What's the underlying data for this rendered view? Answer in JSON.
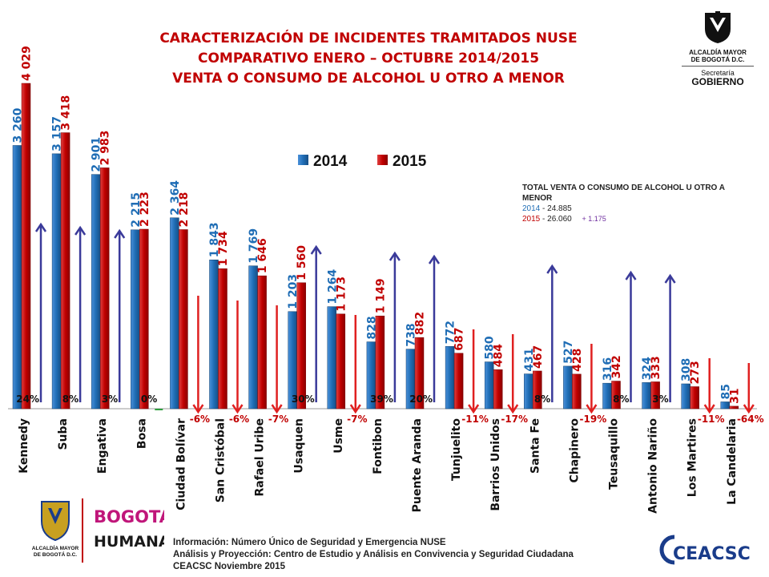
{
  "header": {
    "title_line1": "CARACTERIZACIÓN DE INCIDENTES TRAMITADOS NUSE",
    "title_line2": "COMPARATIVO ENERO – OCTUBRE 2014/2015",
    "title_line3": "VENTA O CONSUMO DE ALCOHOL U OTRO A MENOR"
  },
  "logo_top": {
    "line1": "ALCALDÍA MAYOR",
    "line2": "DE BOGOTÁ D.C.",
    "line3": "Secretaría",
    "line4": "GOBIERNO"
  },
  "logo_bottom_left": {
    "line1": "ALCALDÍA MAYOR",
    "line2": "DE BOGOTÁ D.C."
  },
  "humana_logo": {
    "line1": "BOGOTÁ",
    "line2": "HUMANA"
  },
  "ceacsc_logo": {
    "text": "CEACSC"
  },
  "totals": {
    "heading": "TOTAL VENTA O CONSUMO DE ALCOHOL U OTRO A MENOR",
    "row_2014_year": "2014",
    "row_2014_value": "- 24.885",
    "row_2015_year": "2015",
    "row_2015_value": "- 26.060",
    "difference": "+ 1.175"
  },
  "footer": {
    "line1": "Información: Número Único de Seguridad y Emergencia NUSE",
    "line2": "Análisis y Proyección: Centro de Estudio y Análisis en Convivencia y Seguridad Ciudadana",
    "line3": "CEACSC  Noviembre  2015"
  },
  "colors": {
    "series_2014": "#1f6db5",
    "series_2015": "#c00000",
    "arrow_up": "#3a3a9a",
    "arrow_down": "#e02020",
    "zero_marker": "#2e9e3e"
  },
  "chart_data": {
    "type": "bar",
    "categories": [
      "Kennedy",
      "Suba",
      "Engativa",
      "Bosa",
      "Ciudad Bolívar",
      "San Cristóbal",
      "Rafael Uribe",
      "Usaquen",
      "Usme",
      "Fontibon",
      "Puente Aranda",
      "Tunjuelito",
      "Barrios Unidos",
      "Santa Fe",
      "Chapinero",
      "Teusaquillo",
      "Antonio Nariño",
      "Los Martires",
      "La Candelaria"
    ],
    "series": [
      {
        "name": "2014",
        "values": [
          3260,
          3157,
          2901,
          2215,
          2364,
          1843,
          1769,
          1203,
          1264,
          828,
          738,
          772,
          580,
          431,
          527,
          316,
          324,
          308,
          85
        ],
        "labels": [
          "3 260",
          "3 157",
          "2 901",
          "2 215",
          "2 364",
          "1 843",
          "1 769",
          "1 203",
          "1 264",
          "828",
          "738",
          "772",
          "580",
          "431",
          "527",
          "316",
          "324",
          "308",
          "85"
        ]
      },
      {
        "name": "2015",
        "values": [
          4029,
          3418,
          2983,
          2223,
          2218,
          1734,
          1646,
          1560,
          1173,
          1149,
          882,
          687,
          484,
          467,
          428,
          342,
          333,
          273,
          31
        ],
        "labels": [
          "4 029",
          "3 418",
          "2 983",
          "2 223",
          "2 218",
          "1 734",
          "1 646",
          "1 560",
          "1 173",
          "1 149",
          "882",
          "687",
          "484",
          "467",
          "428",
          "342",
          "333",
          "273",
          "31"
        ]
      }
    ],
    "change_labels": [
      "24%",
      "8%",
      "3%",
      "0%",
      "-6%",
      "-6%",
      "-7%",
      "30%",
      "-7%",
      "39%",
      "20%",
      "-11%",
      "-17%",
      "8%",
      "-19%",
      "8%",
      "3%",
      "-11%",
      "-64%"
    ],
    "change_direction": [
      "up",
      "up",
      "up",
      "none",
      "down",
      "down",
      "down",
      "up",
      "down",
      "up",
      "up",
      "down",
      "down",
      "up",
      "down",
      "up",
      "up",
      "down",
      "down"
    ],
    "legend": [
      "2014",
      "2015"
    ],
    "legend_position": "top-center",
    "ylim": [
      0,
      4500
    ],
    "grid": false
  }
}
